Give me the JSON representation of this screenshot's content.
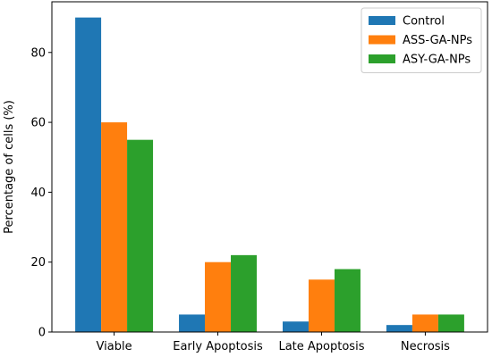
{
  "chart_data": {
    "type": "bar",
    "title": "",
    "xlabel": "",
    "ylabel": "Percentage of cells (%)",
    "categories": [
      "Viable",
      "Early Apoptosis",
      "Late Apoptosis",
      "Necrosis"
    ],
    "ylim": [
      0,
      94.5
    ],
    "yticks": [
      0,
      20,
      40,
      60,
      80
    ],
    "grid": false,
    "legend_position": "top-right",
    "series": [
      {
        "name": "Control",
        "color": "#1f77b4",
        "values": [
          90,
          5,
          3,
          2
        ]
      },
      {
        "name": "ASS-GA-NPs",
        "color": "#ff7f0e",
        "values": [
          60,
          20,
          15,
          5
        ]
      },
      {
        "name": "ASY-GA-NPs",
        "color": "#2ca02c",
        "values": [
          55,
          22,
          18,
          5
        ]
      }
    ]
  }
}
